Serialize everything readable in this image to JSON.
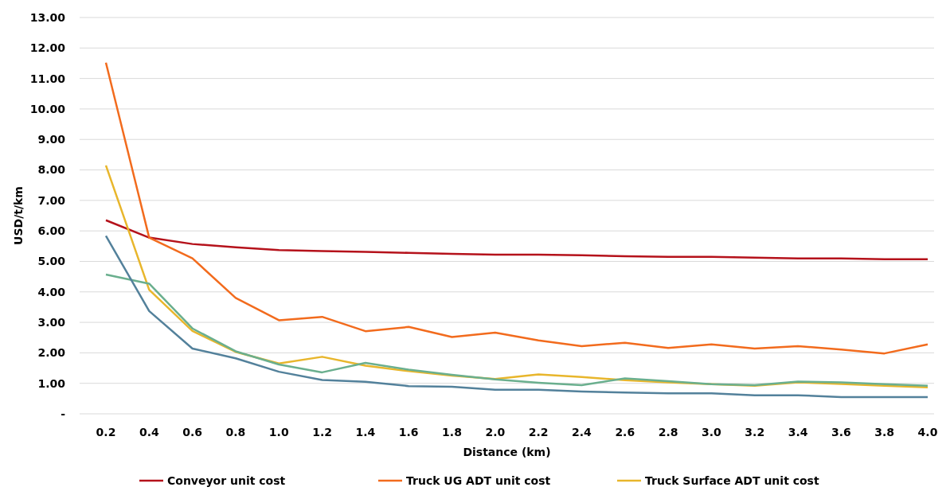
{
  "chart_data": {
    "type": "line",
    "xlabel": "Distance (km)",
    "ylabel": "USD/t/km",
    "categories": [
      "0.2",
      "0.4",
      "0.6",
      "0.8",
      "1.0",
      "1.2",
      "1.4",
      "1.6",
      "1.8",
      "2.0",
      "2.2",
      "2.4",
      "2.6",
      "2.8",
      "3.0",
      "3.2",
      "3.4",
      "3.6",
      "3.8",
      "4.0"
    ],
    "ylim": [
      0,
      13
    ],
    "yticks": [
      {
        "value": 0,
        "label": "-"
      },
      {
        "value": 1,
        "label": "1.00"
      },
      {
        "value": 2,
        "label": "2.00"
      },
      {
        "value": 3,
        "label": "3.00"
      },
      {
        "value": 4,
        "label": "4.00"
      },
      {
        "value": 5,
        "label": "5.00"
      },
      {
        "value": 6,
        "label": "6.00"
      },
      {
        "value": 7,
        "label": "7.00"
      },
      {
        "value": 8,
        "label": "8.00"
      },
      {
        "value": 9,
        "label": "9.00"
      },
      {
        "value": 10,
        "label": "10.00"
      },
      {
        "value": 11,
        "label": "11.00"
      },
      {
        "value": 12,
        "label": "12.00"
      },
      {
        "value": 13,
        "label": "13.00"
      }
    ],
    "grid": "y",
    "legend": "bottom",
    "marker": "none",
    "line_style": "solid",
    "series": [
      {
        "name": "Conveyor unit cost",
        "color": "#b5121b",
        "values": [
          6.35,
          5.78,
          5.57,
          5.46,
          5.37,
          5.34,
          5.31,
          5.28,
          5.25,
          5.22,
          5.22,
          5.2,
          5.17,
          5.15,
          5.15,
          5.12,
          5.1,
          5.1,
          5.07,
          5.07
        ]
      },
      {
        "name": "Truck UG ADT unit cost",
        "color": "#f26b1d",
        "values": [
          11.52,
          5.78,
          5.1,
          3.8,
          3.07,
          3.18,
          2.71,
          2.85,
          2.52,
          2.66,
          2.41,
          2.22,
          2.33,
          2.16,
          2.28,
          2.14,
          2.22,
          2.11,
          1.98,
          2.28
        ]
      },
      {
        "name": "Truck Surface ADT unit cost",
        "color": "#e8b62c",
        "values": [
          8.15,
          4.07,
          2.72,
          2.03,
          1.65,
          1.87,
          1.58,
          1.4,
          1.25,
          1.14,
          1.29,
          1.21,
          1.1,
          1.03,
          0.97,
          0.92,
          1.03,
          0.98,
          0.92,
          0.87
        ]
      },
      {
        "color": "#6aaf8e",
        "values": [
          4.57,
          4.27,
          2.8,
          2.05,
          1.62,
          1.36,
          1.67,
          1.45,
          1.28,
          1.13,
          1.02,
          0.94,
          1.16,
          1.07,
          0.97,
          0.94,
          1.06,
          1.03,
          0.97,
          0.92
        ]
      },
      {
        "color": "#53819b",
        "values": [
          5.84,
          3.37,
          2.14,
          1.82,
          1.38,
          1.11,
          1.05,
          0.91,
          0.89,
          0.79,
          0.79,
          0.73,
          0.7,
          0.67,
          0.67,
          0.61,
          0.61,
          0.55,
          0.55,
          0.55
        ]
      }
    ]
  }
}
